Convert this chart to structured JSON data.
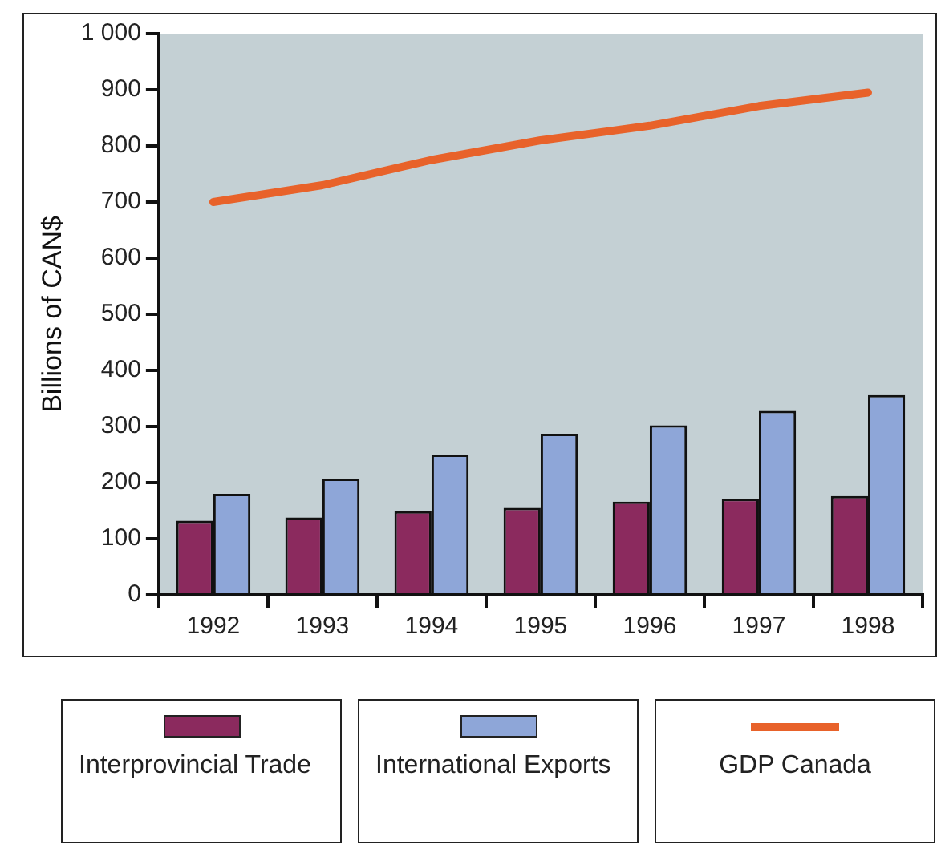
{
  "chart_data": {
    "type": "bar",
    "ylabel": "Billions of CAN$",
    "categories": [
      "1992",
      "1993",
      "1994",
      "1995",
      "1996",
      "1997",
      "1998"
    ],
    "series": [
      {
        "name": "Interprovincial Trade",
        "color": "#8b2a5e",
        "values": [
          132,
          138,
          149,
          155,
          166,
          171,
          176
        ]
      },
      {
        "name": "International Exports",
        "color": "#8ea6d8",
        "values": [
          180,
          207,
          250,
          287,
          302,
          328,
          356
        ]
      },
      {
        "name": "GDP Canada",
        "type": "line",
        "color": "#e8622a",
        "values": [
          700,
          730,
          775,
          810,
          836,
          871,
          895
        ]
      }
    ],
    "ylim": [
      0,
      1000
    ],
    "yticks": [
      0,
      100,
      200,
      300,
      400,
      500,
      600,
      700,
      800,
      900,
      {
        "value": 1000,
        "label": "1 000"
      }
    ],
    "legend": "bottom"
  }
}
